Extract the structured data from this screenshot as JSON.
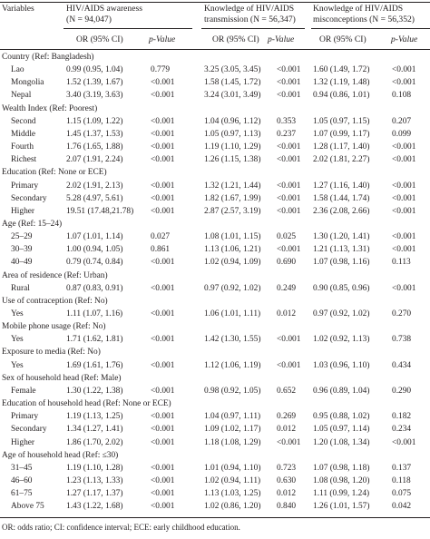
{
  "header": {
    "variables": "Variables",
    "groups": [
      {
        "line1": "HIV/AIDS awareness",
        "line2": "(N = 94,047)"
      },
      {
        "line1": "Knowledge of HIV/AIDS",
        "line2": "transmission (N = 56,347)"
      },
      {
        "line1": "Knowledge of HIV/AIDS",
        "line2": "misconceptions (N = 56,352)"
      }
    ],
    "or_label": "OR (95% CI)",
    "p_label": "p-Value"
  },
  "rows": [
    {
      "type": "section",
      "label": "Country (Ref: Bangladesh)"
    },
    {
      "type": "data",
      "label": "Lao",
      "v": [
        "0.99 (0.95, 1.04)",
        "0.779",
        "3.25 (3.05, 3.45)",
        "<0.001",
        "1.60 (1.49, 1.72)",
        "<0.001"
      ]
    },
    {
      "type": "data",
      "label": "Mongolia",
      "v": [
        "1.52 (1.39, 1.67)",
        "<0.001",
        "1.58 (1.45, 1.72)",
        "<0.001",
        "1.32 (1.19, 1.48)",
        "<0.001"
      ]
    },
    {
      "type": "data",
      "label": "Nepal",
      "v": [
        "3.40 (3.19, 3.63)",
        "<0.001",
        "3.24 (3.01, 3.49)",
        "<0.001",
        "0.94 (0.86, 1.01)",
        "0.108"
      ]
    },
    {
      "type": "section",
      "label": "Wealth Index (Ref: Poorest)"
    },
    {
      "type": "data",
      "label": "Second",
      "v": [
        "1.15 (1.09, 1.22)",
        "<0.001",
        "1.04 (0.96, 1.12)",
        "0.353",
        "1.05 (0.97, 1.15)",
        "0.207"
      ]
    },
    {
      "type": "data",
      "label": "Middle",
      "v": [
        "1.45 (1.37, 1.53)",
        "<0.001",
        "1.05 (0.97, 1.13)",
        "0.237",
        "1.07 (0.99, 1.17)",
        "0.099"
      ]
    },
    {
      "type": "data",
      "label": "Fourth",
      "v": [
        "1.76 (1.65, 1.88)",
        "<0.001",
        "1.19 (1.10, 1.29)",
        "<0.001",
        "1.28 (1.17, 1.40)",
        "<0.001"
      ]
    },
    {
      "type": "data",
      "label": "Richest",
      "v": [
        "2.07 (1.91, 2.24)",
        "<0.001",
        "1.26 (1.15, 1.38)",
        "<0.001",
        "2.02 (1.81, 2.27)",
        "<0.001"
      ]
    },
    {
      "type": "section",
      "label": "Education (Ref: None or ECE)"
    },
    {
      "type": "data",
      "label": "Primary",
      "v": [
        "2.02 (1.91, 2.13)",
        "<0.001",
        "1.32 (1.21, 1.44)",
        "<0.001",
        "1.27 (1.16, 1.40)",
        "<0.001"
      ]
    },
    {
      "type": "data",
      "label": "Secondary",
      "v": [
        "5.28 (4.97, 5.61)",
        "<0.001",
        "1.82 (1.67, 1.99)",
        "<0.001",
        "1.58 (1.44, 1.74)",
        "<0.001"
      ]
    },
    {
      "type": "data",
      "label": "Higher",
      "v": [
        "19.51 (17.48,21.78)",
        "<0.001",
        "2.87 (2.57, 3.19)",
        "<0.001",
        "2.36 (2.08, 2.66)",
        "<0.001"
      ]
    },
    {
      "type": "section",
      "label": "Age (Ref: 15–24)"
    },
    {
      "type": "data",
      "label": "25–29",
      "v": [
        "1.07 (1.01, 1.14)",
        "0.027",
        "1.08 (1.01, 1.15)",
        "0.025",
        "1.30 (1.20, 1.41)",
        "<0.001"
      ]
    },
    {
      "type": "data",
      "label": "30–39",
      "v": [
        "1.00 (0.94, 1.05)",
        "0.861",
        "1.13 (1.06, 1.21)",
        "<0.001",
        "1.21 (1.13, 1.31)",
        "<0.001"
      ]
    },
    {
      "type": "data",
      "label": "40–49",
      "v": [
        "0.79 (0.74, 0.84)",
        "<0.001",
        "1.02 (0.94, 1.09)",
        "0.690",
        "1.07 (0.98, 1.16)",
        "0.113"
      ]
    },
    {
      "type": "section",
      "label": "Area of residence (Ref: Urban)"
    },
    {
      "type": "data",
      "label": "Rural",
      "v": [
        "0.87 (0.83, 0.91)",
        "<0.001",
        "0.97 (0.92, 1.02)",
        "0.249",
        "0.90 (0.85, 0.96)",
        "<0.001"
      ]
    },
    {
      "type": "section",
      "label": "Use of contraception (Ref: No)"
    },
    {
      "type": "data",
      "label": "Yes",
      "v": [
        "1.11 (1.07, 1.16)",
        "<0.001",
        "1.06 (1.01, 1.11)",
        "0.012",
        "0.97 (0.92, 1.02)",
        "0.270"
      ]
    },
    {
      "type": "section",
      "label": "Mobile phone usage (Ref: No)"
    },
    {
      "type": "data",
      "label": "Yes",
      "v": [
        "1.71 (1.62, 1.81)",
        "<0.001",
        "1.42 (1.30, 1.55)",
        "<0.001",
        "1.02 (0.92, 1.13)",
        "0.738"
      ]
    },
    {
      "type": "section",
      "label": "Exposure to media (Ref: No)"
    },
    {
      "type": "data",
      "label": "Yes",
      "v": [
        "1.69 (1.61, 1.76)",
        "<0.001",
        "1.12 (1.06, 1.19)",
        "<0.001",
        "1.03 (0.96, 1.10)",
        "0.434"
      ]
    },
    {
      "type": "section",
      "label": "Sex of household head (Ref: Male)"
    },
    {
      "type": "data",
      "label": "Female",
      "v": [
        "1.30 (1.22, 1.38)",
        "<0.001",
        "0.98 (0.92, 1.05)",
        "0.652",
        "0.96 (0.89, 1.04)",
        "0.290"
      ]
    },
    {
      "type": "section",
      "label": "Education of household head (Ref: None or ECE)"
    },
    {
      "type": "data",
      "label": "Primary",
      "v": [
        "1.19 (1.13, 1.25)",
        "<0.001",
        "1.04 (0.97, 1.11)",
        "0.269",
        "0.95 (0.88, 1.02)",
        "0.182"
      ]
    },
    {
      "type": "data",
      "label": "Secondary",
      "v": [
        "1.34 (1.27, 1.41)",
        "<0.001",
        "1.09 (1.02, 1.17)",
        "0.012",
        "1.05 (0.97, 1.14)",
        "0.234"
      ]
    },
    {
      "type": "data",
      "label": "Higher",
      "v": [
        "1.86 (1.70, 2.02)",
        "<0.001",
        "1.18 (1.08, 1.29)",
        "<0.001",
        "1.20 (1.08, 1.34)",
        "<0.001"
      ]
    },
    {
      "type": "section",
      "label": "Age of household head (Ref: ≤30)"
    },
    {
      "type": "data",
      "label": "31–45",
      "v": [
        "1.19 (1.10, 1.28)",
        "<0.001",
        "1.01 (0.94, 1.10)",
        "0.723",
        "1.07 (0.98, 1.18)",
        "0.137"
      ]
    },
    {
      "type": "data",
      "label": "46–60",
      "v": [
        "1.23 (1.13, 1.33)",
        "<0.001",
        "1.02 (0.94, 1.11)",
        "0.630",
        "1.08 (0.98, 1.20)",
        "0.118"
      ]
    },
    {
      "type": "data",
      "label": "61–75",
      "v": [
        "1.27 (1.17, 1.37)",
        "<0.001",
        "1.13 (1.03, 1.25)",
        "0.012",
        "1.11 (0.99, 1.24)",
        "0.075"
      ]
    },
    {
      "type": "data",
      "label": "Above 75",
      "v": [
        "1.43 (1.22, 1.68)",
        "<0.001",
        "1.02 (0.86, 1.20)",
        "0.840",
        "1.26 (1.01, 1.57)",
        "0.042"
      ]
    }
  ],
  "footnote": "OR: odds ratio; CI: confidence interval; ECE: early childhood education."
}
